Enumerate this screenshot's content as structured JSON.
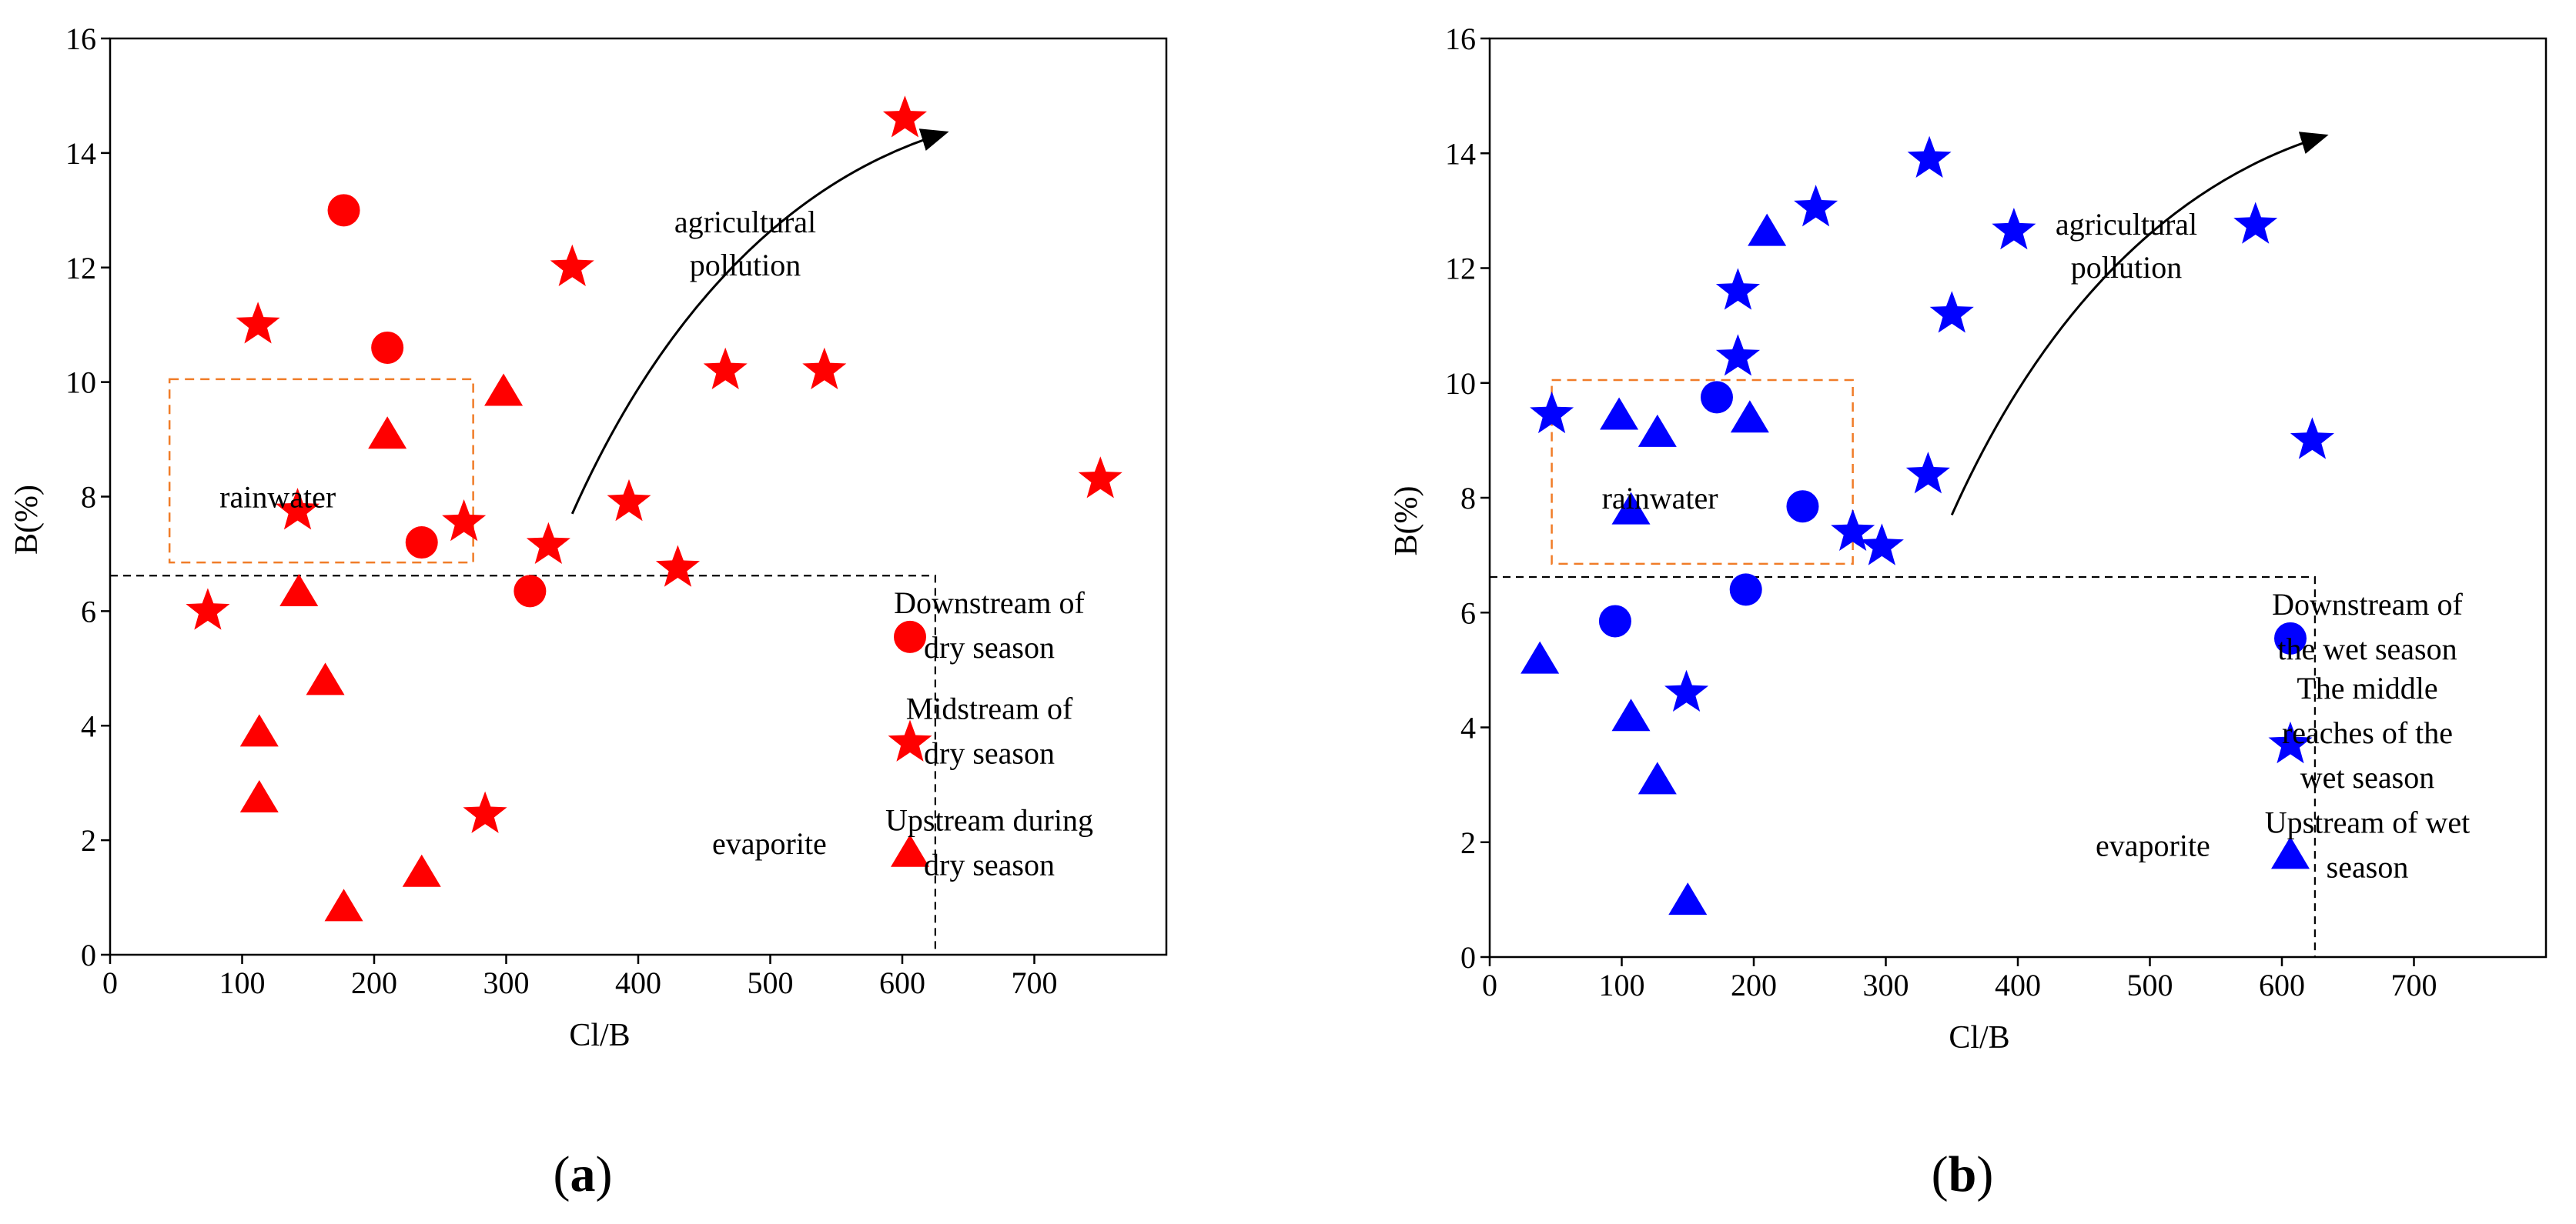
{
  "chart_data": [
    {
      "type": "scatter",
      "panel": "a",
      "panel_label": "a",
      "xlabel": "Cl/B",
      "ylabel": "B(%)",
      "xlim": [
        0,
        800
      ],
      "ylim": [
        0,
        16
      ],
      "x_ticks": [
        "0",
        "100",
        "200",
        "300",
        "400",
        "500",
        "600",
        "700"
      ],
      "y_ticks": [
        "0",
        "2",
        "4",
        "6",
        "8",
        "10",
        "12",
        "14",
        "16"
      ],
      "color": "#FF0000",
      "series": [
        {
          "name": "Downstream of dry season",
          "marker": "circle",
          "points": [
            [
              177,
              13.0
            ],
            [
              210,
              10.6
            ],
            [
              236,
              7.2
            ],
            [
              318,
              6.35
            ]
          ]
        },
        {
          "name": "Midstream of dry season",
          "marker": "star",
          "points": [
            [
              602,
              14.6
            ],
            [
              112,
              11.0
            ],
            [
              350,
              12.0
            ],
            [
              466,
              10.2
            ],
            [
              541,
              10.2
            ],
            [
              142,
              7.75
            ],
            [
              268,
              7.55
            ],
            [
              332,
              7.15
            ],
            [
              393,
              7.9
            ],
            [
              430,
              6.75
            ],
            [
              74,
              6.0
            ],
            [
              284,
              2.45
            ],
            [
              750,
              8.3
            ]
          ]
        },
        {
          "name": "Upstream during dry season",
          "marker": "triangle",
          "points": [
            [
              298,
              9.8
            ],
            [
              210,
              9.05
            ],
            [
              143,
              6.3
            ],
            [
              163,
              4.75
            ],
            [
              113,
              3.85
            ],
            [
              113,
              2.7
            ],
            [
              236,
              1.4
            ],
            [
              177,
              0.8
            ]
          ]
        }
      ],
      "legend": [
        {
          "marker": "circle",
          "lines": [
            "Downstream of",
            "dry season"
          ]
        },
        {
          "marker": "star",
          "lines": [
            "Midstream of",
            "dry season"
          ]
        },
        {
          "marker": "triangle",
          "lines": [
            "Upstream during",
            "dry season"
          ]
        }
      ],
      "annotations": {
        "rainwater": "rainwater",
        "pollution_lines": [
          "agricultural",
          "pollution"
        ],
        "evaporite": "evaporite"
      },
      "rainwater_box": {
        "x": [
          45,
          275
        ],
        "y": [
          6.85,
          10.05
        ]
      },
      "evaporite_region": {
        "x_max": 625,
        "y_max": 6.62
      },
      "arrow": {
        "from": [
          350,
          7.7
        ],
        "to": [
          632,
          14.35
        ]
      }
    },
    {
      "type": "scatter",
      "panel": "b",
      "panel_label": "b",
      "xlabel": "Cl/B",
      "ylabel": "B(%)",
      "xlim": [
        0,
        800
      ],
      "ylim": [
        0,
        16
      ],
      "x_ticks": [
        "0",
        "100",
        "200",
        "300",
        "400",
        "500",
        "600",
        "700"
      ],
      "y_ticks": [
        "0",
        "2",
        "4",
        "6",
        "8",
        "10",
        "12",
        "14",
        "16"
      ],
      "color": "#0000FF",
      "series": [
        {
          "name": "Downstream of the wet season",
          "marker": "circle",
          "points": [
            [
              172,
              9.75
            ],
            [
              237,
              7.85
            ],
            [
              95,
              5.85
            ],
            [
              194,
              6.4
            ]
          ]
        },
        {
          "name": "The middle reaches of the wet season",
          "marker": "star",
          "points": [
            [
              333,
              13.9
            ],
            [
              247,
              13.05
            ],
            [
              397,
              12.65
            ],
            [
              580,
              12.75
            ],
            [
              188,
              11.6
            ],
            [
              350,
              11.2
            ],
            [
              188,
              10.45
            ],
            [
              47,
              9.45
            ],
            [
              623,
              9.0
            ],
            [
              332,
              8.4
            ],
            [
              275,
              7.4
            ],
            [
              297,
              7.15
            ],
            [
              149,
              4.6
            ]
          ]
        },
        {
          "name": "Upstream of wet season",
          "marker": "triangle",
          "points": [
            [
              210,
              12.6
            ],
            [
              98,
              9.4
            ],
            [
              127,
              9.1
            ],
            [
              197,
              9.35
            ],
            [
              107,
              7.75
            ],
            [
              38,
              5.15
            ],
            [
              107,
              4.15
            ],
            [
              127,
              3.05
            ],
            [
              150,
              0.95
            ]
          ]
        }
      ],
      "legend": [
        {
          "marker": "circle",
          "lines": [
            "Downstream of",
            "the wet season"
          ]
        },
        {
          "marker": "star",
          "lines": [
            "The middle",
            "reaches of the",
            "wet season"
          ]
        },
        {
          "marker": "triangle",
          "lines": [
            "Upstream of wet",
            "season"
          ]
        }
      ],
      "annotations": {
        "rainwater": "rainwater",
        "pollution_lines": [
          "agricultural",
          "pollution"
        ],
        "evaporite": "evaporite"
      },
      "rainwater_box": {
        "x": [
          47,
          275
        ],
        "y": [
          6.85,
          10.05
        ]
      },
      "evaporite_region": {
        "x_max": 625,
        "y_max": 6.62
      },
      "arrow": {
        "from": [
          350,
          7.7
        ],
        "to": [
          632,
          14.3
        ]
      }
    }
  ]
}
